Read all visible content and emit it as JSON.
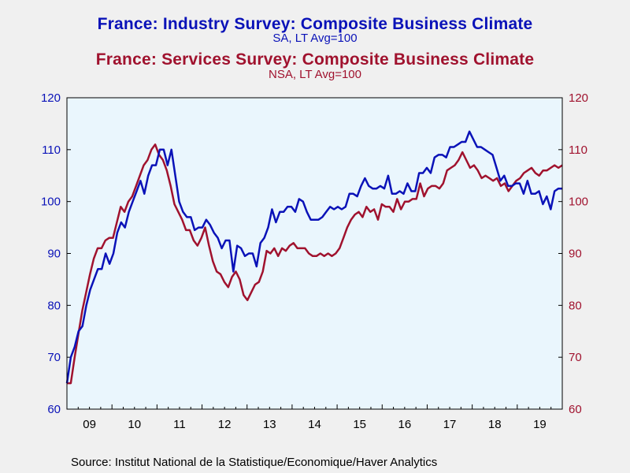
{
  "titles": {
    "industry_title": "France: Industry Survey: Composite Business Climate",
    "industry_subtitle": "SA, LT Avg=100",
    "services_title": "France: Services Survey: Composite Business Climate",
    "services_subtitle": "NSA, LT Avg=100"
  },
  "source": "Source:  Institut National de la Statistique/Economique/Haver Analytics",
  "colors": {
    "industry": "#0a12b8",
    "services": "#a0122e",
    "plot_background": "#eaf6fd",
    "page_background": "#f0f0f0"
  },
  "chart_data": {
    "type": "line",
    "start": "2009-01",
    "frequency": "monthly",
    "x_tick_labels": [
      "09",
      "10",
      "11",
      "12",
      "13",
      "14",
      "15",
      "16",
      "17",
      "18",
      "19"
    ],
    "y_left": {
      "ticks": [
        60,
        70,
        80,
        90,
        100,
        110,
        120
      ],
      "range": [
        60,
        120
      ]
    },
    "y_right": {
      "ticks": [
        60,
        70,
        80,
        90,
        100,
        110,
        120
      ],
      "range": [
        60,
        120
      ]
    },
    "grid": false,
    "legend": "none",
    "series": [
      {
        "name": "France: Industry Survey: Composite Business Climate",
        "axis": "left",
        "values": [
          65,
          70,
          72,
          75,
          76,
          80,
          83,
          85,
          87,
          87,
          90,
          88,
          90,
          94,
          96,
          95,
          98,
          100,
          102,
          104,
          101.5,
          105,
          107,
          107,
          110,
          110,
          107,
          110,
          105,
          100,
          98,
          97,
          97,
          94.5,
          95,
          95,
          96.5,
          95.5,
          94,
          93,
          91,
          92.5,
          92.5,
          86.5,
          91.5,
          91,
          89.5,
          90,
          90,
          87.5,
          92,
          93,
          95,
          98.5,
          96,
          98,
          98,
          99,
          99,
          98,
          100.5,
          100,
          98,
          96.5,
          96.5,
          96.5,
          97,
          98,
          99,
          98.5,
          99,
          98.5,
          99,
          101.5,
          101.5,
          101,
          103,
          104.5,
          103,
          102.5,
          102.5,
          103,
          102.5,
          105,
          101.5,
          101.5,
          102,
          101.5,
          103.5,
          102,
          102,
          105.5,
          105.5,
          106.5,
          105.5,
          108.5,
          109,
          109,
          108.5,
          110.5,
          110.5,
          111,
          111.5,
          111.5,
          113.5,
          112,
          110.5,
          110.5,
          110,
          109.5,
          109,
          106.5,
          104,
          105,
          103,
          103,
          103.5,
          103.5,
          101.5,
          104,
          101.5,
          101.5,
          102,
          99.5,
          101,
          98.5,
          102,
          102.5,
          102.5
        ]
      },
      {
        "name": "France: Services Survey: Composite Business Climate",
        "axis": "right",
        "values": [
          65,
          65,
          70,
          74.5,
          79,
          82.5,
          86,
          89,
          91,
          91,
          92.5,
          93,
          93,
          96,
          99,
          98,
          100,
          101,
          103,
          105,
          107,
          108,
          110,
          111,
          109,
          108,
          106,
          103,
          99.5,
          98,
          96.5,
          94.5,
          94.5,
          92.5,
          91.5,
          93,
          95,
          91.5,
          88.5,
          86.5,
          86,
          84.5,
          83.5,
          85.5,
          86.5,
          85,
          82,
          81,
          82.5,
          84,
          84.5,
          86.5,
          90.5,
          90,
          91,
          89.5,
          91,
          90.5,
          91.5,
          92,
          91,
          91,
          91,
          90,
          89.5,
          89.5,
          90,
          89.5,
          90,
          89.5,
          90,
          91,
          93,
          95,
          96.5,
          97.5,
          98,
          97,
          99,
          98,
          98.5,
          96.5,
          99.5,
          99,
          99,
          98,
          100.5,
          98.5,
          100,
          100,
          100.5,
          100.5,
          103.5,
          101,
          102.5,
          103,
          103,
          102.5,
          103.5,
          106,
          106.5,
          107,
          108,
          109.5,
          108,
          106.5,
          107,
          106,
          104.5,
          105,
          104.5,
          104,
          104.5,
          103,
          103.5,
          102,
          103,
          104,
          104.5,
          105.5,
          106,
          106.5,
          105.5,
          105,
          106,
          106,
          106.5,
          107,
          106.5,
          107
        ]
      }
    ]
  }
}
